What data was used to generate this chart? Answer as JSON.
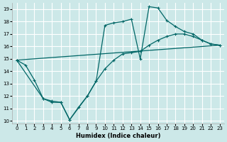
{
  "xlabel": "Humidex (Indice chaleur)",
  "background_color": "#cce8e8",
  "grid_color": "#ffffff",
  "line_color": "#006666",
  "xlim": [
    -0.5,
    23.5
  ],
  "ylim": [
    9.8,
    19.5
  ],
  "xticks": [
    0,
    1,
    2,
    3,
    4,
    5,
    6,
    7,
    8,
    9,
    10,
    11,
    12,
    13,
    14,
    15,
    16,
    17,
    18,
    19,
    20,
    21,
    22,
    23
  ],
  "yticks": [
    10,
    11,
    12,
    13,
    14,
    15,
    16,
    17,
    18,
    19
  ],
  "line1_x": [
    0,
    1,
    2,
    3,
    4,
    5,
    6,
    7,
    8,
    9,
    10,
    11,
    12,
    13,
    14,
    15,
    16,
    17,
    18,
    19,
    20,
    21,
    22,
    23
  ],
  "line1_y": [
    14.9,
    14.5,
    13.3,
    11.8,
    11.5,
    11.5,
    10.1,
    11.1,
    12.0,
    13.2,
    14.2,
    14.9,
    15.4,
    15.5,
    15.6,
    16.1,
    16.5,
    16.8,
    17.0,
    17.0,
    16.8,
    16.5,
    16.2,
    16.1
  ],
  "line2_x": [
    0,
    3,
    4,
    5,
    6,
    8,
    9,
    10,
    11,
    12,
    13,
    14,
    15,
    16,
    17,
    18,
    19,
    20,
    21,
    22,
    23
  ],
  "line2_y": [
    14.9,
    11.8,
    11.6,
    11.5,
    10.1,
    12.0,
    13.2,
    17.7,
    17.9,
    18.0,
    18.2,
    15.0,
    19.2,
    19.1,
    18.1,
    17.6,
    17.2,
    17.0,
    16.5,
    16.2,
    16.1
  ],
  "line3_x": [
    0,
    23
  ],
  "line3_y": [
    14.9,
    16.1
  ]
}
